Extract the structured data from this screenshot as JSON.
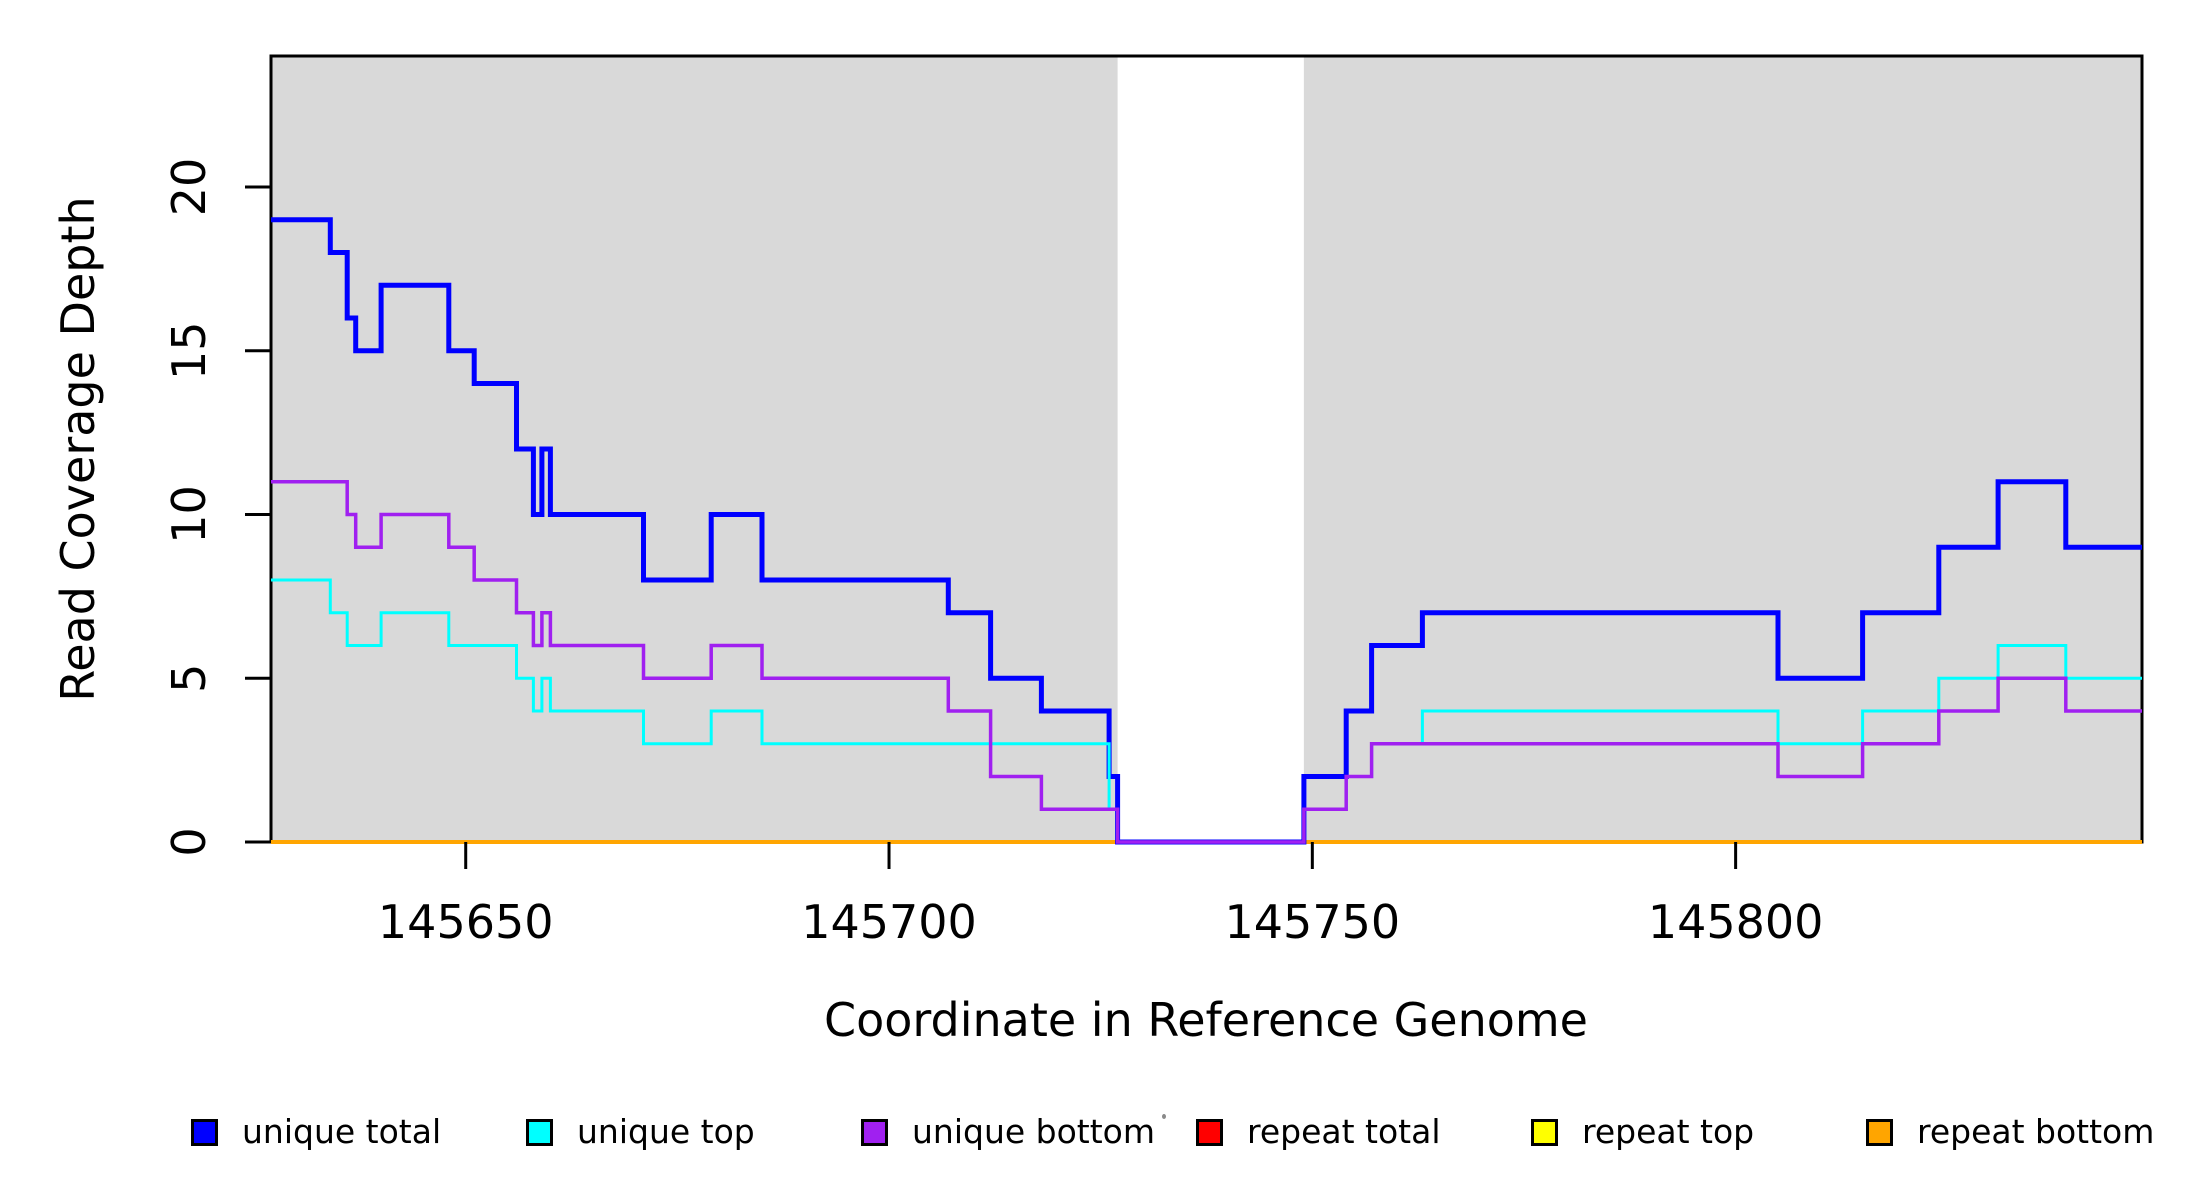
{
  "figure": {
    "x_axis_title": "Coordinate in Reference Genome",
    "y_axis_title": "Read Coverage Depth"
  },
  "chart_data": {
    "type": "line",
    "subtype": "step-coverage",
    "title": "",
    "xlabel": "Coordinate in Reference Genome",
    "ylabel": "Read Coverage Depth",
    "xlim": [
      145627,
      145848
    ],
    "ylim": [
      0,
      24
    ],
    "x_ticks": [
      145650,
      145700,
      145750,
      145800
    ],
    "x_tick_labels": [
      "145650",
      "145700",
      "145750",
      "145800"
    ],
    "y_ticks": [
      0,
      5,
      10,
      15,
      20
    ],
    "y_tick_labels": [
      "0",
      "5",
      "10",
      "15",
      "20"
    ],
    "grid": false,
    "legend_position": "bottom",
    "band_color": "#D9D9D9",
    "coverage_bands": [
      [
        145627,
        145727
      ],
      [
        145749,
        145848
      ]
    ],
    "uncovered_gap": [
      145727,
      145749
    ],
    "series": [
      {
        "name": "repeat total",
        "color": "#FF0000",
        "lw": 4,
        "steps": [
          [
            145627,
            0
          ],
          [
            145848,
            0
          ]
        ]
      },
      {
        "name": "repeat top",
        "color": "#FFFF00",
        "lw": 4,
        "steps": [
          [
            145627,
            0
          ],
          [
            145848,
            0
          ]
        ]
      },
      {
        "name": "repeat bottom",
        "color": "#FFA500",
        "lw": 4,
        "steps": [
          [
            145627,
            0
          ],
          [
            145848,
            0
          ]
        ]
      },
      {
        "name": "unique total",
        "color": "#0000FF",
        "lw": 5,
        "steps": [
          [
            145627,
            19
          ],
          [
            145634,
            18
          ],
          [
            145636,
            16
          ],
          [
            145637,
            15
          ],
          [
            145640,
            17
          ],
          [
            145648,
            15
          ],
          [
            145651,
            14
          ],
          [
            145656,
            12
          ],
          [
            145658,
            10
          ],
          [
            145659,
            12
          ],
          [
            145660,
            10
          ],
          [
            145671,
            8
          ],
          [
            145679,
            10
          ],
          [
            145685,
            8
          ],
          [
            145707,
            7
          ],
          [
            145712,
            5
          ],
          [
            145718,
            4
          ],
          [
            145726,
            2
          ],
          [
            145727,
            0
          ],
          [
            145749,
            2
          ],
          [
            145754,
            4
          ],
          [
            145757,
            6
          ],
          [
            145763,
            7
          ],
          [
            145805,
            5
          ],
          [
            145815,
            7
          ],
          [
            145824,
            9
          ],
          [
            145831,
            11
          ],
          [
            145839,
            9
          ],
          [
            145848,
            9
          ]
        ]
      },
      {
        "name": "unique top",
        "color": "#00FFFF",
        "lw": 3,
        "steps": [
          [
            145627,
            8
          ],
          [
            145634,
            7
          ],
          [
            145636,
            6
          ],
          [
            145640,
            7
          ],
          [
            145648,
            6
          ],
          [
            145656,
            5
          ],
          [
            145658,
            4
          ],
          [
            145659,
            5
          ],
          [
            145660,
            4
          ],
          [
            145671,
            3
          ],
          [
            145679,
            4
          ],
          [
            145685,
            3
          ],
          [
            145726,
            1
          ],
          [
            145727,
            0
          ],
          [
            145749,
            1
          ],
          [
            145754,
            2
          ],
          [
            145757,
            3
          ],
          [
            145763,
            4
          ],
          [
            145805,
            3
          ],
          [
            145815,
            4
          ],
          [
            145824,
            5
          ],
          [
            145831,
            6
          ],
          [
            145839,
            5
          ],
          [
            145848,
            5
          ]
        ]
      },
      {
        "name": "unique bottom",
        "color": "#A020F0",
        "lw": 3.5,
        "steps": [
          [
            145627,
            11
          ],
          [
            145636,
            10
          ],
          [
            145637,
            9
          ],
          [
            145640,
            10
          ],
          [
            145648,
            9
          ],
          [
            145651,
            8
          ],
          [
            145656,
            7
          ],
          [
            145658,
            6
          ],
          [
            145659,
            7
          ],
          [
            145660,
            6
          ],
          [
            145671,
            5
          ],
          [
            145679,
            6
          ],
          [
            145685,
            5
          ],
          [
            145707,
            4
          ],
          [
            145712,
            2
          ],
          [
            145718,
            1
          ],
          [
            145727,
            0
          ],
          [
            145749,
            1
          ],
          [
            145754,
            2
          ],
          [
            145757,
            3
          ],
          [
            145805,
            2
          ],
          [
            145815,
            3
          ],
          [
            145824,
            4
          ],
          [
            145831,
            5
          ],
          [
            145839,
            4
          ],
          [
            145848,
            4
          ]
        ]
      }
    ]
  },
  "legend": {
    "items": [
      {
        "label": "unique total",
        "color": "#0000FF"
      },
      {
        "label": "unique top",
        "color": "#00FFFF"
      },
      {
        "label": "unique bottom",
        "color": "#A020F0"
      },
      {
        "label": "repeat total",
        "color": "#FF0000"
      },
      {
        "label": "repeat top",
        "color": "#FFFF00"
      },
      {
        "label": "repeat bottom",
        "color": "#FFA500"
      }
    ]
  }
}
